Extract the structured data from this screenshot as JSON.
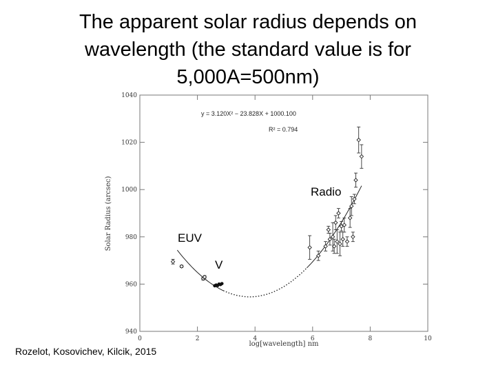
{
  "slide": {
    "title_lines": [
      "The apparent solar radius depends on",
      "wavelength (the standard value is for",
      "5,000A=500nm)"
    ],
    "credit": "Rozelot, Kosovichev, Kilcik, 2015"
  },
  "chart_data": {
    "type": "scatter",
    "title": "",
    "xlabel": "log[wavelength] nm",
    "ylabel": "Solar Radius (arcsec)",
    "xlim": [
      0,
      10
    ],
    "ylim": [
      940,
      1040
    ],
    "x_ticks": [
      0,
      2,
      4,
      6,
      8,
      10
    ],
    "y_ticks": [
      940,
      960,
      980,
      1000,
      1020,
      1040
    ],
    "fit": {
      "equation": "y = 3.120X² − 23.828X + 1000.100",
      "r_squared": "R² = 0.794",
      "a": 3.12,
      "b": -23.828,
      "c": 1000.1,
      "solid_ranges": [
        [
          1.3,
          2.9
        ],
        [
          5.8,
          7.7
        ]
      ],
      "dotted_range": [
        2.9,
        5.8
      ]
    },
    "region_labels": {
      "radio": "Radio",
      "euv": "EUV",
      "visible": "V"
    },
    "series": [
      {
        "marker": "diamond",
        "points": [
          {
            "x": 1.15,
            "y": 969.5,
            "err": 1.0
          },
          {
            "x": 1.45,
            "y": 967.5,
            "err": 0.5
          },
          {
            "x": 2.2,
            "y": 962.3,
            "err": 0.6
          },
          {
            "x": 2.25,
            "y": 963.0,
            "err": 0.6
          },
          {
            "x": 5.9,
            "y": 975.5,
            "err": 5.0
          },
          {
            "x": 6.2,
            "y": 972.0,
            "err": 2.0
          },
          {
            "x": 6.45,
            "y": 976.0,
            "err": 2.0
          },
          {
            "x": 6.55,
            "y": 983.0,
            "err": 1.5
          },
          {
            "x": 6.6,
            "y": 979.0,
            "err": 2.5
          },
          {
            "x": 6.7,
            "y": 980.0,
            "err": 6.0
          },
          {
            "x": 6.75,
            "y": 976.0,
            "err": 3.0
          },
          {
            "x": 6.8,
            "y": 986.0,
            "err": 3.0
          },
          {
            "x": 6.85,
            "y": 978.0,
            "err": 5.0
          },
          {
            "x": 6.9,
            "y": 990.0,
            "err": 2.0
          },
          {
            "x": 6.95,
            "y": 977.0,
            "err": 5.0
          },
          {
            "x": 7.0,
            "y": 984.5,
            "err": 2.0
          },
          {
            "x": 7.05,
            "y": 979.0,
            "err": 3.0
          },
          {
            "x": 7.1,
            "y": 985.0,
            "err": 3.0
          },
          {
            "x": 7.2,
            "y": 978.0,
            "err": 2.0
          },
          {
            "x": 7.3,
            "y": 988.0,
            "err": 4.0
          },
          {
            "x": 7.35,
            "y": 993.0,
            "err": 4.0
          },
          {
            "x": 7.4,
            "y": 980.0,
            "err": 2.0
          },
          {
            "x": 7.45,
            "y": 996.0,
            "err": 2.0
          },
          {
            "x": 7.5,
            "y": 1004.0,
            "err": 3.0
          },
          {
            "x": 7.6,
            "y": 1021.0,
            "err": 5.5
          },
          {
            "x": 7.7,
            "y": 1014.0,
            "err": 5.0
          }
        ]
      },
      {
        "marker": "filled-circle",
        "points": [
          {
            "x": 2.6,
            "y": 959.3
          },
          {
            "x": 2.65,
            "y": 959.6
          },
          {
            "x": 2.7,
            "y": 959.4
          },
          {
            "x": 2.75,
            "y": 960.0
          },
          {
            "x": 2.8,
            "y": 959.8
          },
          {
            "x": 2.85,
            "y": 960.2
          }
        ]
      }
    ]
  }
}
